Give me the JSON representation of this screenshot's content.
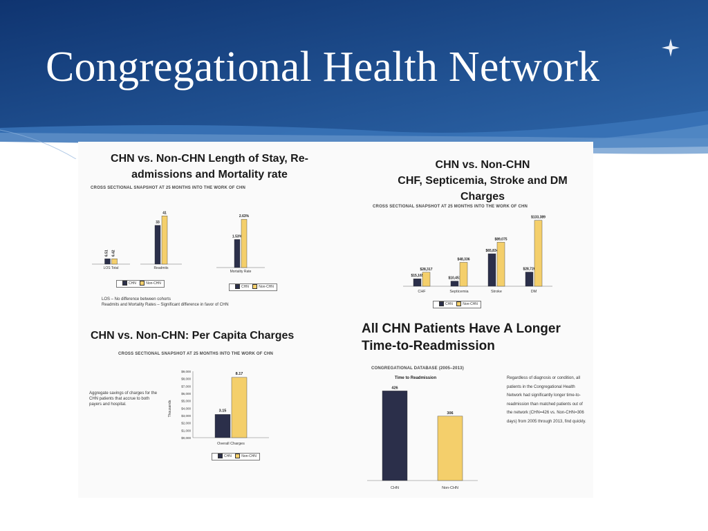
{
  "slide": {
    "title": "Congregational Health Network"
  },
  "colors": {
    "header_dark": "#123a72",
    "header_mid": "#2a5d9e",
    "chn": "#2b2f4a",
    "non_chn": "#f4cf6b"
  },
  "icons": {
    "logo": "four-point-star-icon"
  },
  "panels": {
    "stay": {
      "title": "CHN vs. Non-CHN Length of Stay, Re-admissions and Mortality rate",
      "subtitle": "CROSS SECTIONAL SNAPSHOT AT 25 MONTHS INTO THE WORK OF CHN",
      "legend": [
        "CHN",
        "Non-CHN"
      ],
      "note1": "LOS – No difference between cohorts",
      "note2": "Readmits and Mortality Rates – Significant difference in favor of CHN"
    },
    "charges": {
      "title_l1": "CHN vs. Non-CHN",
      "title_l2": "CHF, Septicemia, Stroke and DM",
      "title_l3": "Charges",
      "subtitle": "CROSS SECTIONAL SNAPSHOT AT 25 MONTHS INTO THE WORK OF CHN",
      "legend": [
        "CHN",
        "Non-CHN"
      ]
    },
    "percapita": {
      "title": "CHN vs. Non-CHN: Per Capita Charges",
      "subtitle": "CROSS SECTIONAL SNAPSHOT AT 25 MONTHS INTO THE WORK OF CHN",
      "description": "Aggregate savings of charges for the CHN patients that accrue to both payers and hospital.",
      "legend": [
        "CHN",
        "Non-CHN"
      ]
    },
    "readmit": {
      "title_l1": "All CHN Patients Have A Longer",
      "title_l2": "Time-to-Readmission",
      "subtitle": "CONGREGATIONAL DATABASE (2005–2013)",
      "description": "Regardless of diagnosis or condition, all patients in the Congregational Health Network had significantly longer time-to-readmission than matched patients out of the network (CHN=426 vs. Non-CHN=306 days) from 2005 through 2013, find quickly."
    }
  },
  "chart_data": [
    {
      "type": "bar",
      "title": "CHN vs. Non-CHN Length of Stay, Re-admissions and Mortality rate",
      "series_names": [
        "CHN",
        "Non-CHN"
      ],
      "groups": [
        {
          "categories": [
            "LOS Total"
          ],
          "series": [
            {
              "name": "CHN",
              "values": [
                6.51
              ],
              "labels": [
                "6.51"
              ]
            },
            {
              "name": "Non-CHN",
              "values": [
                6.42
              ],
              "labels": [
                "6.42"
              ]
            }
          ],
          "ymax": 50
        },
        {
          "categories": [
            "Readmits"
          ],
          "series": [
            {
              "name": "CHN",
              "values": [
                33
              ],
              "labels": [
                "33"
              ]
            },
            {
              "name": "Non-CHN",
              "values": [
                41
              ],
              "labels": [
                "41"
              ]
            }
          ],
          "ymax": 50
        },
        {
          "categories": [
            "Mortality Rate"
          ],
          "series": [
            {
              "name": "CHN",
              "values": [
                1.53
              ],
              "labels": [
                "1.53%"
              ]
            },
            {
              "name": "Non-CHN",
              "values": [
                2.63
              ],
              "labels": [
                "2.63%"
              ]
            }
          ],
          "ymax": 3.2
        }
      ]
    },
    {
      "type": "bar",
      "title": "CHN vs. Non-CHN CHF, Septicemia, Stroke and DM Charges",
      "categories": [
        "CHF",
        "Septicemia",
        "Stroke",
        "DM"
      ],
      "series": [
        {
          "name": "CHN",
          "values": [
            15165,
            10451,
            65834,
            28726
          ],
          "labels": [
            "$15,165",
            "$10,451",
            "$65,834",
            "$28,726"
          ]
        },
        {
          "name": "Non-CHN",
          "values": [
            28317,
            48336,
            89075,
            133389
          ],
          "labels": [
            "$28,317",
            "$48,336",
            "$89,075",
            "$133,389"
          ]
        }
      ],
      "ylim": [
        0,
        140000
      ]
    },
    {
      "type": "bar",
      "title": "CHN vs. Non-CHN: Per Capita Charges",
      "ylabel": "Thousands",
      "yticks": [
        "$9,000",
        "$8,000",
        "$7,000",
        "$6,000",
        "$5,000",
        "$4,000",
        "$3,000",
        "$2,000",
        "$1,000",
        "$0,000"
      ],
      "categories": [
        "Overall Charges"
      ],
      "series": [
        {
          "name": "CHN",
          "values": [
            3.15
          ],
          "labels": [
            "3.15"
          ]
        },
        {
          "name": "Non-CHN",
          "values": [
            8.17
          ],
          "labels": [
            "8.17"
          ]
        }
      ],
      "ylim": [
        0,
        9
      ]
    },
    {
      "type": "bar",
      "title": "Time to Readmission",
      "categories": [
        "CHN",
        "Non-CHN"
      ],
      "values": [
        426,
        306
      ],
      "labels": [
        "426",
        "306"
      ],
      "ylim": [
        0,
        470
      ]
    }
  ]
}
